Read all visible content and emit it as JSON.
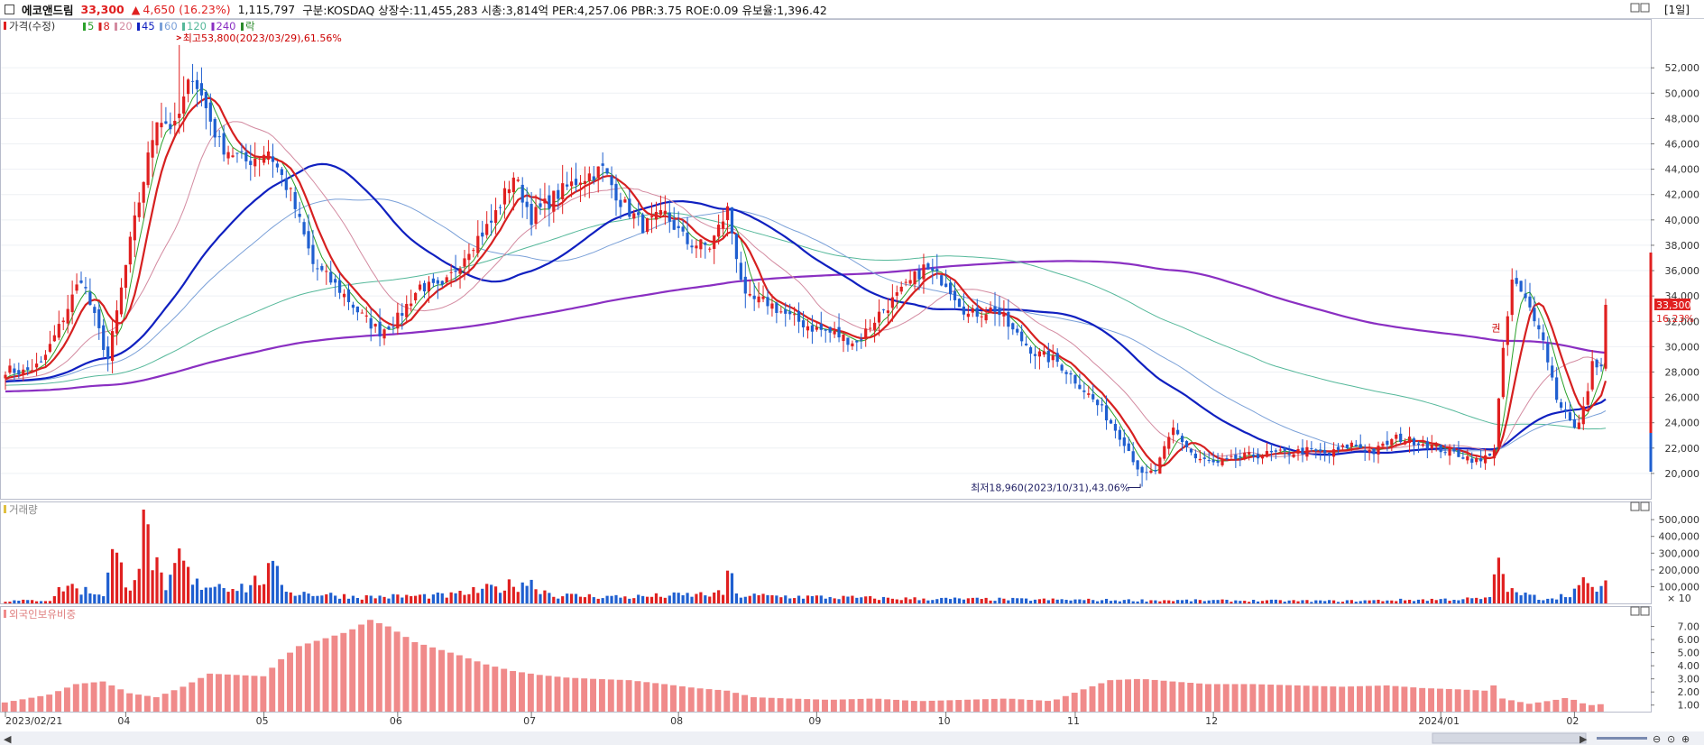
{
  "header": {
    "name": "에코앤드림",
    "price": "33,300",
    "change_arrow": "▲",
    "change": "4,650",
    "change_pct": "(16.23%)",
    "volume": "1,115,797",
    "info": "구분:KOSDAQ 상장수:11,455,283 시총:3,814억 PER:4,257.06 PBR:3.75 ROE:0.09 유보율:1,396.42",
    "period": "[1일]"
  },
  "colors": {
    "up": "#e02020",
    "down": "#1f5fd0",
    "ma5": "#2aa12a",
    "ma8": "#d62020",
    "ma20": "#d38aa0",
    "ma45": "#1020c0",
    "ma60": "#7aa0d8",
    "ma120": "#55b89a",
    "ma240": "#8a2fc2",
    "foreign": "#f08a8a"
  },
  "chart_data": [
    {
      "type": "candlestick",
      "title": "가격(수정)",
      "legend": [
        "5",
        "8",
        "20",
        "45",
        "60",
        "120",
        "240",
        "락"
      ],
      "y_ticks": [
        20000,
        22000,
        24000,
        26000,
        28000,
        30000,
        32000,
        34000,
        36000,
        38000,
        40000,
        42000,
        44000,
        46000,
        48000,
        50000,
        52000
      ],
      "y_tick_labels": [
        "20,000",
        "22,000",
        "24,000",
        "26,000",
        "28,000",
        "30,000",
        "32,000",
        "34,000",
        "36,000",
        "38,000",
        "40,000",
        "42,000",
        "44,000",
        "46,000",
        "48,000",
        "50,000",
        "52,000"
      ],
      "ylim": [
        18000,
        55500
      ],
      "x_labels": [
        "2023/02/21",
        "04",
        "05",
        "06",
        "07",
        "08",
        "09",
        "10",
        "11",
        "12",
        "2024/01",
        "02"
      ],
      "annotations": {
        "high": "최고53,800(2023/03/29),61.56%",
        "low": "최저18,960(2023/10/31),43.06%",
        "last_price": "33,300",
        "last_pct": "16.23%",
        "marker": "권"
      },
      "anchors": [
        [
          0,
          28200
        ],
        [
          4,
          28000
        ],
        [
          8,
          28600
        ],
        [
          12,
          31500
        ],
        [
          17,
          35500
        ],
        [
          23,
          29000
        ],
        [
          28,
          38200
        ],
        [
          34,
          48200
        ],
        [
          38,
          47200
        ],
        [
          42,
          51600
        ],
        [
          48,
          46000
        ],
        [
          54,
          44600
        ],
        [
          59,
          45500
        ],
        [
          64,
          42000
        ],
        [
          69,
          36500
        ],
        [
          75,
          34500
        ],
        [
          80,
          32400
        ],
        [
          84,
          31200
        ],
        [
          88,
          32200
        ],
        [
          93,
          34800
        ],
        [
          98,
          34500
        ],
        [
          104,
          37800
        ],
        [
          109,
          39800
        ],
        [
          114,
          43500
        ],
        [
          118,
          40200
        ],
        [
          123,
          41800
        ],
        [
          129,
          43300
        ],
        [
          134,
          44000
        ],
        [
          138,
          41500
        ],
        [
          143,
          39500
        ],
        [
          148,
          40400
        ],
        [
          153,
          38200
        ],
        [
          158,
          37900
        ],
        [
          162,
          40800
        ],
        [
          166,
          33700
        ],
        [
          171,
          33500
        ],
        [
          176,
          32300
        ],
        [
          181,
          31500
        ],
        [
          186,
          31000
        ],
        [
          191,
          30300
        ],
        [
          196,
          32600
        ],
        [
          201,
          34300
        ],
        [
          206,
          36200
        ],
        [
          211,
          35100
        ],
        [
          216,
          32500
        ],
        [
          222,
          33000
        ],
        [
          226,
          31200
        ],
        [
          231,
          29500
        ],
        [
          236,
          28800
        ],
        [
          241,
          27000
        ],
        [
          246,
          25000
        ],
        [
          251,
          22500
        ],
        [
          255,
          19800
        ],
        [
          258,
          20200
        ],
        [
          262,
          23500
        ],
        [
          267,
          21200
        ],
        [
          272,
          20700
        ],
        [
          277,
          21300
        ],
        [
          282,
          21500
        ],
        [
          287,
          21600
        ],
        [
          292,
          21800
        ],
        [
          297,
          21500
        ],
        [
          302,
          22300
        ],
        [
          307,
          21700
        ],
        [
          312,
          22800
        ],
        [
          317,
          22500
        ],
        [
          322,
          21900
        ],
        [
          327,
          21400
        ],
        [
          331,
          20900
        ],
        [
          334,
          22000
        ],
        [
          336,
          29500
        ],
        [
          338,
          35200
        ],
        [
          341,
          33600
        ],
        [
          344,
          31800
        ],
        [
          346,
          29000
        ],
        [
          348,
          26000
        ],
        [
          350,
          24800
        ],
        [
          352,
          23400
        ],
        [
          354,
          25000
        ],
        [
          356,
          28700
        ],
        [
          358,
          28200
        ],
        [
          359,
          33300
        ]
      ],
      "volume_anchors": [
        [
          0,
          15000
        ],
        [
          10,
          20000
        ],
        [
          12,
          80000
        ],
        [
          14,
          120000
        ],
        [
          16,
          90000
        ],
        [
          22,
          60000
        ],
        [
          24,
          300000
        ],
        [
          28,
          120000
        ],
        [
          30,
          280000
        ],
        [
          31,
          520000
        ],
        [
          33,
          300000
        ],
        [
          36,
          60000
        ],
        [
          39,
          300000
        ],
        [
          42,
          120000
        ],
        [
          48,
          120000
        ],
        [
          54,
          100000
        ],
        [
          60,
          200000
        ],
        [
          64,
          70000
        ],
        [
          80,
          40000
        ],
        [
          100,
          50000
        ],
        [
          113,
          110000
        ],
        [
          117,
          140000
        ],
        [
          123,
          50000
        ],
        [
          140,
          40000
        ],
        [
          161,
          60000
        ],
        [
          162,
          230000
        ],
        [
          164,
          50000
        ],
        [
          200,
          30000
        ],
        [
          250,
          20000
        ],
        [
          300,
          15000
        ],
        [
          333,
          30000
        ],
        [
          334,
          200000
        ],
        [
          335,
          320000
        ],
        [
          336,
          150000
        ],
        [
          338,
          70000
        ],
        [
          345,
          30000
        ],
        [
          350,
          50000
        ],
        [
          354,
          120000
        ],
        [
          356,
          90000
        ],
        [
          359,
          110000
        ]
      ]
    },
    {
      "type": "bar",
      "title": "거래량",
      "y_ticks": [
        100000,
        200000,
        300000,
        400000,
        500000
      ],
      "y_tick_labels": [
        "100,000",
        "200,000",
        "300,000",
        "400,000",
        "500,000"
      ],
      "ylim": [
        0,
        560000
      ],
      "unit_label": "× 10"
    },
    {
      "type": "bar",
      "title": "외국인보유비중",
      "y_ticks": [
        1,
        2,
        3,
        4,
        5,
        6,
        7
      ],
      "y_tick_labels": [
        "1.00",
        "2.00",
        "3.00",
        "4.00",
        "5.00",
        "6.00",
        "7.00"
      ],
      "ylim": [
        0.5,
        8.0
      ],
      "anchors": [
        [
          0,
          1.2
        ],
        [
          10,
          1.8
        ],
        [
          16,
          2.6
        ],
        [
          22,
          2.8
        ],
        [
          28,
          1.9
        ],
        [
          34,
          1.6
        ],
        [
          40,
          2.4
        ],
        [
          46,
          3.4
        ],
        [
          52,
          3.3
        ],
        [
          58,
          3.2
        ],
        [
          62,
          4.5
        ],
        [
          66,
          5.5
        ],
        [
          72,
          6.1
        ],
        [
          77,
          6.6
        ],
        [
          82,
          7.5
        ],
        [
          86,
          7.0
        ],
        [
          92,
          5.8
        ],
        [
          96,
          5.4
        ],
        [
          102,
          4.8
        ],
        [
          108,
          4.1
        ],
        [
          114,
          3.6
        ],
        [
          120,
          3.3
        ],
        [
          126,
          3.1
        ],
        [
          132,
          3.0
        ],
        [
          140,
          2.9
        ],
        [
          148,
          2.6
        ],
        [
          155,
          2.3
        ],
        [
          162,
          2.1
        ],
        [
          168,
          1.6
        ],
        [
          176,
          1.5
        ],
        [
          185,
          1.4
        ],
        [
          195,
          1.5
        ],
        [
          205,
          1.3
        ],
        [
          215,
          1.4
        ],
        [
          225,
          1.5
        ],
        [
          235,
          1.3
        ],
        [
          242,
          2.2
        ],
        [
          248,
          2.9
        ],
        [
          255,
          3.0
        ],
        [
          262,
          2.8
        ],
        [
          270,
          2.6
        ],
        [
          280,
          2.6
        ],
        [
          290,
          2.5
        ],
        [
          300,
          2.4
        ],
        [
          310,
          2.5
        ],
        [
          318,
          2.3
        ],
        [
          326,
          2.2
        ],
        [
          332,
          2.1
        ],
        [
          334,
          2.5
        ],
        [
          336,
          1.5
        ],
        [
          342,
          1.1
        ],
        [
          348,
          1.4
        ],
        [
          351,
          1.6
        ],
        [
          353,
          1.2
        ],
        [
          356,
          1.0
        ],
        [
          359,
          1.1
        ]
      ]
    }
  ]
}
